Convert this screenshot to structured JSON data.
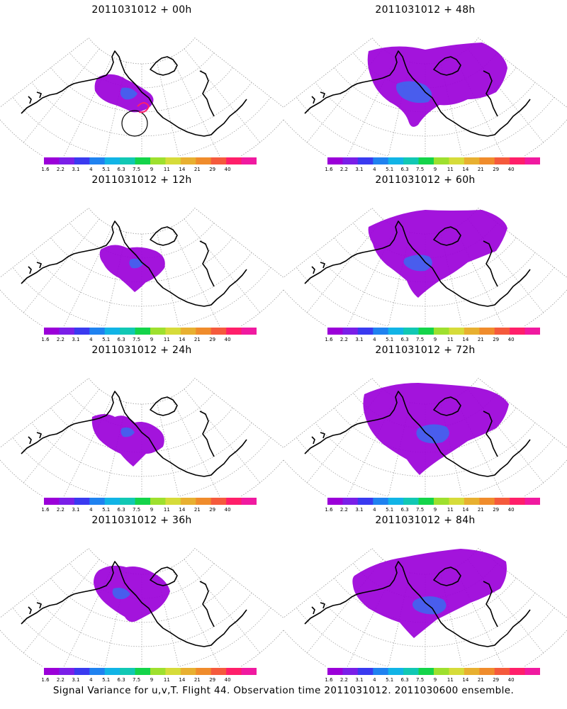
{
  "panels": [
    {
      "title": "2011031012 + 00h",
      "lead_hours": 0,
      "observation_marker": true
    },
    {
      "title": "2011031012 + 48h",
      "lead_hours": 48,
      "observation_marker": false
    },
    {
      "title": "2011031012 + 12h",
      "lead_hours": 12,
      "observation_marker": false
    },
    {
      "title": "2011031012 + 60h",
      "lead_hours": 60,
      "observation_marker": false
    },
    {
      "title": "2011031012 + 24h",
      "lead_hours": 24,
      "observation_marker": false
    },
    {
      "title": "2011031012 + 72h",
      "lead_hours": 72,
      "observation_marker": false
    },
    {
      "title": "2011031012 + 36h",
      "lead_hours": 36,
      "observation_marker": false
    },
    {
      "title": "2011031012 + 84h",
      "lead_hours": 84,
      "observation_marker": false
    }
  ],
  "colorbar": {
    "labels": [
      "1.6",
      "2.2",
      "3.1",
      "4",
      "5.1",
      "6.3",
      "7.5",
      "9",
      "11",
      "14",
      "21",
      "29",
      "40"
    ],
    "colors": [
      "#9b00d9",
      "#7a1fe8",
      "#3a3af0",
      "#1f82f0",
      "#11b4e6",
      "#11c8b4",
      "#14d44a",
      "#9ee02e",
      "#d6dc3a",
      "#e8b030",
      "#f08c2c",
      "#f55a3c",
      "#ff1f6a",
      "#f01aa0"
    ]
  },
  "footer": "Signal Variance for u,v,T. Flight 44. Observation time 2011031012. 2011030600 ensemble."
}
